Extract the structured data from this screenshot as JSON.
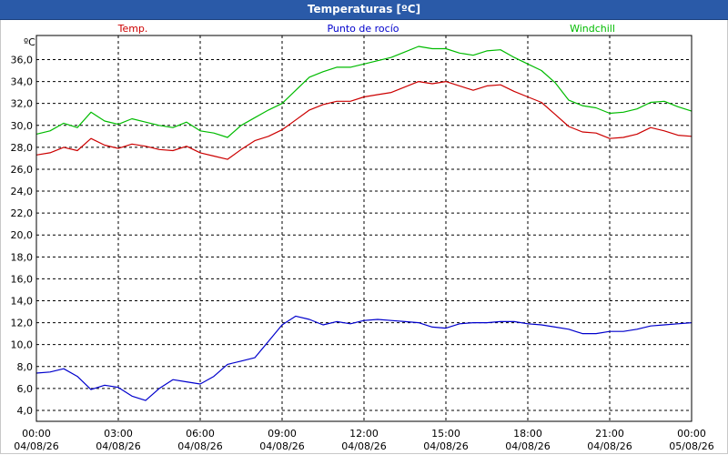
{
  "window": {
    "title": "Temperaturas [ºC]"
  },
  "chart_data": {
    "type": "line",
    "title": "Temperaturas [ºC]",
    "ylabel": "ºC",
    "xlabel": "",
    "ylim": [
      3.0,
      38.2
    ],
    "yticks": [
      "4,0",
      "6,0",
      "8,0",
      "10,0",
      "12,0",
      "14,0",
      "16,0",
      "18,0",
      "20,0",
      "22,0",
      "24,0",
      "26,0",
      "28,0",
      "30,0",
      "32,0",
      "34,0",
      "36,0"
    ],
    "ytick_values": [
      4,
      6,
      8,
      10,
      12,
      14,
      16,
      18,
      20,
      22,
      24,
      26,
      28,
      30,
      32,
      34,
      36
    ],
    "xlim": [
      0,
      24
    ],
    "xticks": [
      {
        "time": "00:00",
        "date": "04/08/26"
      },
      {
        "time": "03:00",
        "date": "04/08/26"
      },
      {
        "time": "06:00",
        "date": "04/08/26"
      },
      {
        "time": "09:00",
        "date": "04/08/26"
      },
      {
        "time": "12:00",
        "date": "04/08/26"
      },
      {
        "time": "15:00",
        "date": "04/08/26"
      },
      {
        "time": "18:00",
        "date": "04/08/26"
      },
      {
        "time": "21:00",
        "date": "04/08/26"
      },
      {
        "time": "00:00",
        "date": "05/08/26"
      }
    ],
    "grid": true,
    "legend_placement": "top",
    "x": [
      0,
      0.5,
      1,
      1.5,
      2,
      2.5,
      3,
      3.5,
      4,
      4.5,
      5,
      5.5,
      6,
      6.5,
      7,
      7.5,
      8,
      8.5,
      9,
      9.5,
      10,
      10.5,
      11,
      11.5,
      12,
      12.5,
      13,
      13.5,
      14,
      14.5,
      15,
      15.5,
      16,
      16.5,
      17,
      17.5,
      18,
      18.5,
      19,
      19.5,
      20,
      20.5,
      21,
      21.5,
      22,
      22.5,
      23,
      23.5,
      24
    ],
    "series": [
      {
        "name": "Temp.",
        "color": "#cc0000",
        "values": [
          27.3,
          27.5,
          28.0,
          27.7,
          28.8,
          28.2,
          27.9,
          28.3,
          28.1,
          27.8,
          27.7,
          28.1,
          27.5,
          27.2,
          26.9,
          27.8,
          28.6,
          29.0,
          29.6,
          30.5,
          31.4,
          31.9,
          32.2,
          32.2,
          32.6,
          32.8,
          33.0,
          33.5,
          34.0,
          33.8,
          34.0,
          33.6,
          33.2,
          33.6,
          33.7,
          33.1,
          32.6,
          32.1,
          31.0,
          29.9,
          29.4,
          29.3,
          28.8,
          28.9,
          29.2,
          29.8,
          29.5,
          29.1,
          29.0
        ]
      },
      {
        "name": "Punto de rocío",
        "color": "#0000cc",
        "values": [
          7.4,
          7.5,
          7.8,
          7.1,
          5.9,
          6.3,
          6.1,
          5.3,
          4.9,
          6.0,
          6.8,
          6.6,
          6.4,
          7.1,
          8.2,
          8.5,
          8.8,
          10.3,
          11.8,
          12.6,
          12.3,
          11.8,
          12.1,
          11.9,
          12.2,
          12.3,
          12.2,
          12.1,
          12.0,
          11.6,
          11.5,
          11.9,
          12.0,
          12.0,
          12.1,
          12.1,
          11.9,
          11.8,
          11.6,
          11.4,
          11.0,
          11.0,
          11.2,
          11.2,
          11.4,
          11.7,
          11.8,
          11.9,
          12.0
        ]
      },
      {
        "name": "Windchill",
        "color": "#00bb00",
        "values": [
          29.2,
          29.5,
          30.2,
          29.8,
          31.2,
          30.4,
          30.1,
          30.6,
          30.3,
          30.0,
          29.8,
          30.3,
          29.5,
          29.3,
          28.9,
          30.0,
          30.7,
          31.4,
          32.0,
          33.2,
          34.4,
          34.9,
          35.3,
          35.3,
          35.6,
          35.9,
          36.2,
          36.7,
          37.2,
          37.0,
          37.0,
          36.6,
          36.4,
          36.8,
          36.9,
          36.2,
          35.6,
          35.0,
          33.9,
          32.3,
          31.8,
          31.6,
          31.1,
          31.2,
          31.5,
          32.1,
          32.2,
          31.7,
          31.3
        ]
      }
    ]
  }
}
